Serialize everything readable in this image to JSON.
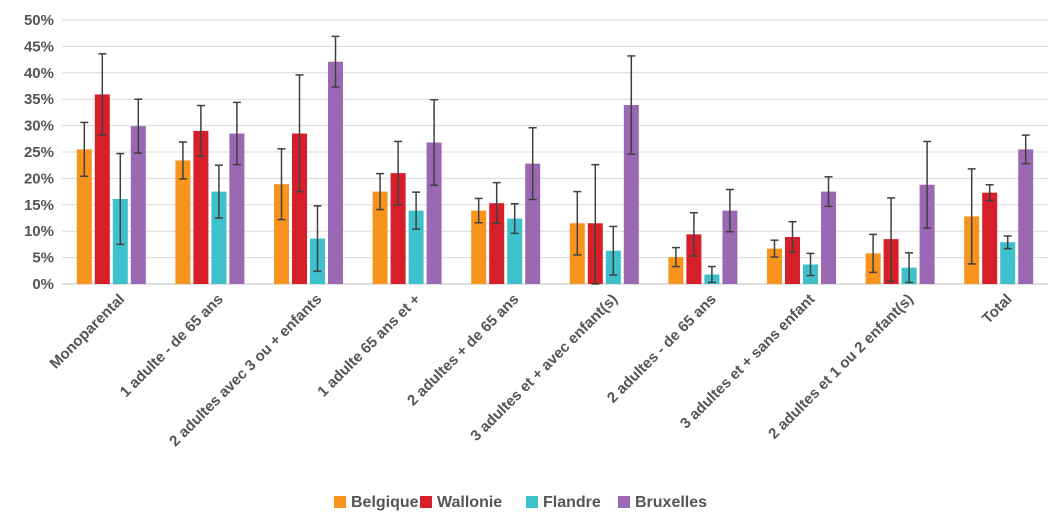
{
  "chart_data": {
    "type": "bar",
    "title": "",
    "xlabel": "",
    "ylabel": "",
    "ylim": [
      0,
      50
    ],
    "y_ticks": [
      "0%",
      "5%",
      "10%",
      "15%",
      "20%",
      "25%",
      "30%",
      "35%",
      "40%",
      "45%",
      "50%"
    ],
    "y_tick_values": [
      0,
      5,
      10,
      15,
      20,
      25,
      30,
      35,
      40,
      45,
      50
    ],
    "grid": "horizontal",
    "legend_position": "bottom",
    "categories": [
      "Monoparental",
      "1 adulte - de 65 ans",
      "2 adultes avec 3 ou + enfants",
      "1 adulte 65 ans et +",
      "2 adultes + de 65 ans",
      "3 adultes et + avec enfant(s)",
      "2 adultes - de 65 ans",
      "3 adultes et + sans enfant",
      "2 adultes et 1 ou 2 enfant(s)",
      "Total"
    ],
    "series": [
      {
        "name": "Belgique",
        "color": "#F7941D",
        "values": [
          25.5,
          23.4,
          18.9,
          17.5,
          13.9,
          11.5,
          5.1,
          6.7,
          5.8,
          12.8
        ],
        "err_low": [
          20.4,
          19.9,
          12.2,
          14.1,
          11.6,
          5.5,
          3.3,
          5.1,
          2.2,
          3.8
        ],
        "err_high": [
          30.6,
          26.9,
          25.6,
          20.9,
          16.2,
          17.5,
          6.9,
          8.3,
          9.4,
          21.8
        ]
      },
      {
        "name": "Wallonie",
        "color": "#D71F2A",
        "values": [
          35.9,
          29.0,
          28.5,
          21.0,
          15.3,
          11.5,
          9.4,
          8.9,
          8.5,
          17.3
        ],
        "err_low": [
          28.2,
          24.2,
          17.5,
          15.0,
          11.5,
          0.0,
          5.3,
          6.0,
          0.5,
          15.8
        ],
        "err_high": [
          43.6,
          33.8,
          39.6,
          27.0,
          19.2,
          22.6,
          13.5,
          11.8,
          16.3,
          18.8
        ]
      },
      {
        "name": "Flandre",
        "color": "#3FC1CB",
        "values": [
          16.1,
          17.5,
          8.6,
          13.9,
          12.4,
          6.3,
          1.8,
          3.7,
          3.1,
          7.9
        ],
        "err_low": [
          7.5,
          12.5,
          2.4,
          10.4,
          9.6,
          1.7,
          0.3,
          1.6,
          0.3,
          6.7
        ],
        "err_high": [
          24.7,
          22.5,
          14.8,
          17.4,
          15.2,
          10.9,
          3.3,
          5.8,
          5.9,
          9.1
        ]
      },
      {
        "name": "Bruxelles",
        "color": "#9B69B3",
        "values": [
          29.9,
          28.5,
          42.1,
          26.8,
          22.8,
          33.9,
          13.9,
          17.5,
          18.8,
          25.5
        ],
        "err_low": [
          24.8,
          22.6,
          37.3,
          18.7,
          16.0,
          24.6,
          9.9,
          14.7,
          10.6,
          22.8
        ],
        "err_high": [
          35.0,
          34.4,
          46.9,
          34.9,
          29.6,
          43.2,
          17.9,
          20.3,
          27.0,
          28.2
        ]
      }
    ]
  }
}
